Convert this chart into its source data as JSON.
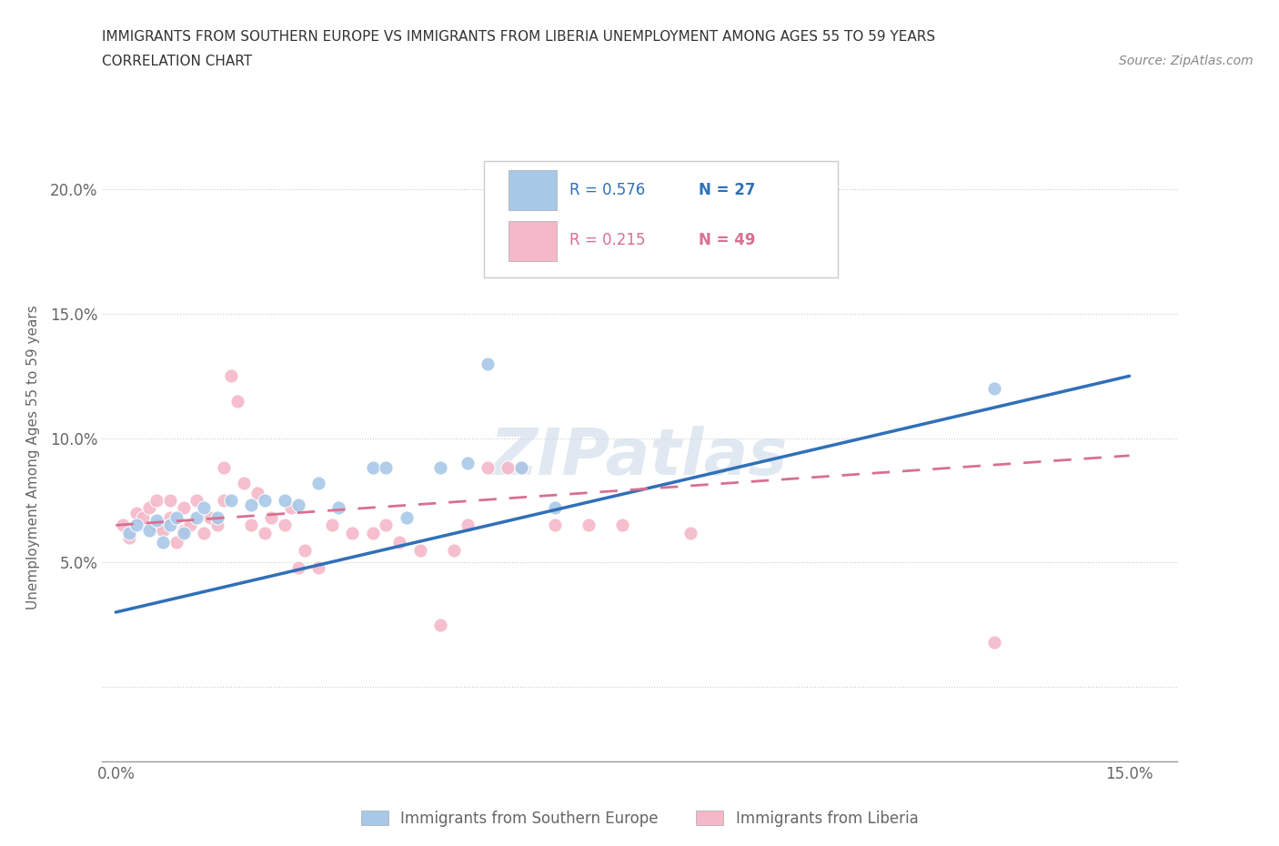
{
  "title_line1": "IMMIGRANTS FROM SOUTHERN EUROPE VS IMMIGRANTS FROM LIBERIA UNEMPLOYMENT AMONG AGES 55 TO 59 YEARS",
  "title_line2": "CORRELATION CHART",
  "source_text": "Source: ZipAtlas.com",
  "ylabel": "Unemployment Among Ages 55 to 59 years",
  "xlim": [
    -0.002,
    0.157
  ],
  "ylim": [
    -0.03,
    0.215
  ],
  "xticks": [
    0.0,
    0.025,
    0.05,
    0.075,
    0.1,
    0.125,
    0.15
  ],
  "yticks": [
    0.0,
    0.05,
    0.1,
    0.15,
    0.2
  ],
  "xticklabels": [
    "0.0%",
    "",
    "",
    "",
    "",
    "",
    "15.0%"
  ],
  "yticklabels": [
    "",
    "5.0%",
    "10.0%",
    "15.0%",
    "20.0%"
  ],
  "blue_color": "#a8c8e8",
  "pink_color": "#f4b8c8",
  "blue_line_color": "#3070b8",
  "pink_line_color": "#d87090",
  "watermark": "ZIPatlas",
  "blue_scatter_x": [
    0.002,
    0.003,
    0.005,
    0.006,
    0.007,
    0.008,
    0.009,
    0.01,
    0.012,
    0.013,
    0.015,
    0.017,
    0.02,
    0.022,
    0.025,
    0.027,
    0.03,
    0.033,
    0.038,
    0.04,
    0.043,
    0.048,
    0.052,
    0.055,
    0.06,
    0.065,
    0.13
  ],
  "blue_scatter_y": [
    0.062,
    0.065,
    0.063,
    0.067,
    0.058,
    0.065,
    0.068,
    0.062,
    0.068,
    0.072,
    0.068,
    0.075,
    0.073,
    0.075,
    0.075,
    0.073,
    0.082,
    0.072,
    0.088,
    0.088,
    0.068,
    0.088,
    0.09,
    0.13,
    0.088,
    0.072,
    0.12
  ],
  "pink_scatter_x": [
    0.001,
    0.002,
    0.003,
    0.004,
    0.005,
    0.006,
    0.006,
    0.007,
    0.008,
    0.008,
    0.009,
    0.01,
    0.01,
    0.011,
    0.012,
    0.013,
    0.014,
    0.015,
    0.016,
    0.016,
    0.017,
    0.018,
    0.019,
    0.02,
    0.021,
    0.022,
    0.023,
    0.025,
    0.026,
    0.027,
    0.028,
    0.03,
    0.032,
    0.035,
    0.038,
    0.04,
    0.042,
    0.045,
    0.048,
    0.05,
    0.052,
    0.055,
    0.058,
    0.06,
    0.065,
    0.07,
    0.075,
    0.085,
    0.13
  ],
  "pink_scatter_y": [
    0.065,
    0.06,
    0.07,
    0.068,
    0.072,
    0.065,
    0.075,
    0.063,
    0.068,
    0.075,
    0.058,
    0.063,
    0.072,
    0.065,
    0.075,
    0.062,
    0.068,
    0.065,
    0.088,
    0.075,
    0.125,
    0.115,
    0.082,
    0.065,
    0.078,
    0.062,
    0.068,
    0.065,
    0.072,
    0.048,
    0.055,
    0.048,
    0.065,
    0.062,
    0.062,
    0.065,
    0.058,
    0.055,
    0.025,
    0.055,
    0.065,
    0.088,
    0.088,
    0.088,
    0.065,
    0.065,
    0.065,
    0.062,
    0.018
  ],
  "blue_trend_x": [
    0.0,
    0.15
  ],
  "blue_trend_y": [
    0.03,
    0.125
  ],
  "pink_trend_x": [
    0.0,
    0.15
  ],
  "pink_trend_y": [
    0.065,
    0.093
  ]
}
